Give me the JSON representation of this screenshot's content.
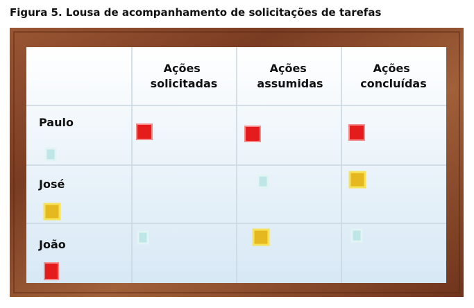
{
  "title": "Figura 5. Lousa de acompanhamento de solicitações de tarefas",
  "board": {
    "headers": [
      {
        "lines": [
          "Ações",
          "solicitadas"
        ]
      },
      {
        "lines": [
          "Ações",
          "assumidas"
        ]
      },
      {
        "lines": [
          "Ações",
          "concluídas"
        ]
      }
    ],
    "rows": [
      "Paulo",
      "José",
      "João"
    ]
  }
}
